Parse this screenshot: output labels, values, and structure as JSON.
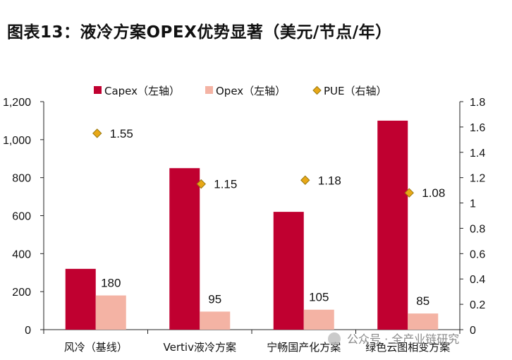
{
  "title": "图表13：液冷方案OPEX优势显著（美元/节点/年）",
  "watermark": "公众号 · 全产业链研究",
  "chart_data": {
    "type": "bar",
    "categories": [
      "风冷（基线）",
      "Vertiv液冷方案",
      "宁畅国产化方案",
      "绿色云图相变方案"
    ],
    "series": [
      {
        "name": "Capex（左轴）",
        "type": "bar",
        "axis": "left",
        "color": "#C00030",
        "values": [
          320,
          850,
          620,
          1100
        ],
        "labels": [
          null,
          null,
          null,
          null
        ]
      },
      {
        "name": "Opex（左轴）",
        "type": "bar",
        "axis": "left",
        "color": "#F4B3A4",
        "values": [
          180,
          95,
          105,
          85
        ],
        "labels": [
          "180",
          "95",
          "105",
          "85"
        ]
      },
      {
        "name": "PUE（右轴）",
        "type": "scatter",
        "axis": "right",
        "color": "#E8A817",
        "values": [
          1.55,
          1.15,
          1.18,
          1.08
        ],
        "labels": [
          "1.55",
          "1.15",
          "1.18",
          "1.08"
        ]
      }
    ],
    "y_left": {
      "min": 0,
      "max": 1200,
      "ticks": [
        "0",
        "200",
        "400",
        "600",
        "800",
        "1,000",
        "1,200"
      ]
    },
    "y_right": {
      "min": 0,
      "max": 1.8,
      "ticks": [
        "0",
        "0.2",
        "0.4",
        "0.6",
        "0.8",
        "1",
        "1.2",
        "1.4",
        "1.6",
        "1.8"
      ]
    },
    "legend": "top",
    "grid": false
  }
}
